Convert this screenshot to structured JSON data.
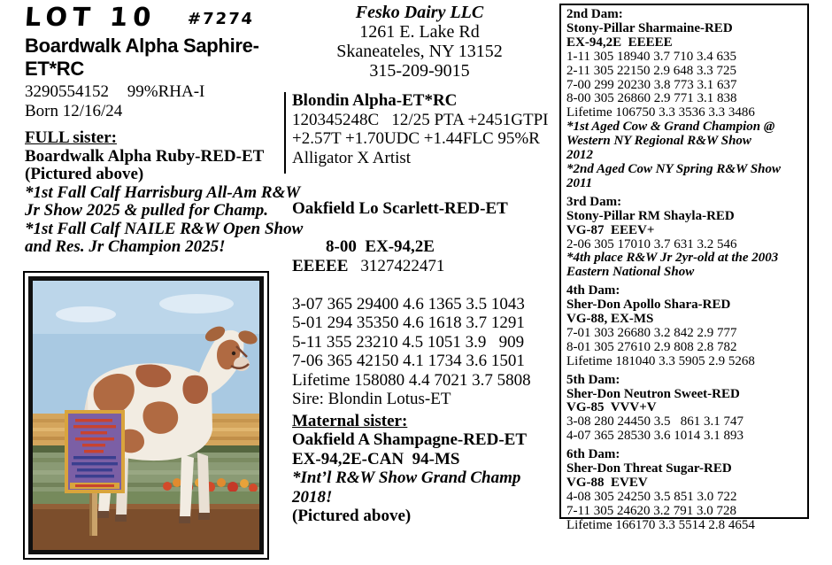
{
  "colors": {
    "page_bg": "#ffffff",
    "text": "#000000",
    "banner_purple": "#7b5fa5",
    "banner_gold": "#d9a43c",
    "photo_sky": "#a9c9e2",
    "photo_dirt": "#7c4e2c"
  },
  "lot": {
    "label": "LOT 10",
    "number": "#7274",
    "name": "Boardwalk Alpha Saphire-ET*RC",
    "reg": "3290554152",
    "rha": "99%RHA-I",
    "born": "Born 12/16/24"
  },
  "seller": {
    "name": "Fesko Dairy LLC",
    "address1": "1261 E. Lake Rd",
    "address2": "Skaneateles, NY 13152",
    "phone": "315-209-9015"
  },
  "full_sister": {
    "heading": "FULL sister:",
    "name": "Boardwalk Alpha Ruby-RED-ET",
    "pictured": "(Pictured above)",
    "awards": [
      "*1st Fall Calf Harrisburg All-Am R&W Jr Show 2025 & pulled for Champ.",
      "*1st Fall Calf NAILE R&W Open Show and Res. Jr Champion 2025!"
    ]
  },
  "sire": {
    "name": "Blondin Alpha-ET*RC",
    "lines": [
      "120345248C   12/25 PTA +2451GTPI",
      "+2.57T +1.70UDC +1.44FLC 95%R",
      "Alligator X Artist"
    ]
  },
  "dam": {
    "name": "Oakfield Lo Scarlett-RED-ET",
    "score": "8-00  EX-94,2E  EEEEE",
    "reg": "3127422471",
    "records": [
      "3-07 365 29400 4.6 1365 3.5 1043",
      "5-01 294 35350 4.6 1618 3.7 1291",
      "5-11 355 23210 4.5 1051 3.9   909",
      "7-06 365 42150 4.1 1734 3.6 1501",
      "Lifetime 158080 4.4 7021 3.7 5808",
      "Sire: Blondin Lotus-ET"
    ]
  },
  "maternal": {
    "heading": "Maternal sister:",
    "name": "Oakfield A Shampagne-RED-ET",
    "score": "EX-94,2E-CAN  94-MS",
    "award": "*Int’l R&W Show Grand Champ 2018!",
    "pictured": "(Pictured above)"
  },
  "pedigree": {
    "dams": [
      {
        "title": "2nd Dam:",
        "name": "Stony-Pillar Sharmaine-RED",
        "score": "EX-94,2E  EEEEE",
        "records": [
          "1-11 305 18940 3.7 710 3.4 635",
          "2-11 305 22150 2.9 648 3.3 725",
          "7-00 299 20230 3.8 773 3.1 637",
          "8-00 305 26860 2.9 771 3.1 838",
          "Lifetime 106750 3.3 3536 3.3 3486"
        ],
        "awards": [
          "*1st Aged Cow & Grand Champion @ Western NY Regional R&W Show 2012",
          "*2nd Aged Cow NY Spring R&W Show 2011"
        ]
      },
      {
        "title": "3rd Dam:",
        "name": "Stony-Pillar RM Shayla-RED",
        "score": "VG-87  EEEV+",
        "records": [
          "2-06 305 17010 3.7 631 3.2 546"
        ],
        "awards": [
          "*4th place R&W Jr 2yr-old at the 2003 Eastern National Show"
        ]
      },
      {
        "title": "4th Dam:",
        "name": "Sher-Don Apollo Shara-RED",
        "score": "VG-88, EX-MS",
        "records": [
          "7-01 303 26680 3.2 842 2.9 777",
          "8-01 305 27610 2.9 808 2.8 782",
          "Lifetime 181040 3.3 5905 2.9 5268"
        ],
        "awards": []
      },
      {
        "title": "5th Dam:",
        "name": "Sher-Don Neutron Sweet-RED",
        "score": "VG-85  VVV+V",
        "records": [
          "3-08 280 24450 3.5   861 3.1 747",
          "4-07 365 28530 3.6 1014 3.1 893"
        ],
        "awards": []
      },
      {
        "title": "6th Dam:",
        "name": "Sher-Don Threat Sugar-RED",
        "score": "VG-88  EVEV",
        "records": [
          "4-08 305 24250 3.5 851 3.0 722",
          "7-11 305 24620 3.2 791 3.0 728",
          "Lifetime 166170 3.3 5514 2.8 4654"
        ],
        "awards": []
      }
    ]
  }
}
